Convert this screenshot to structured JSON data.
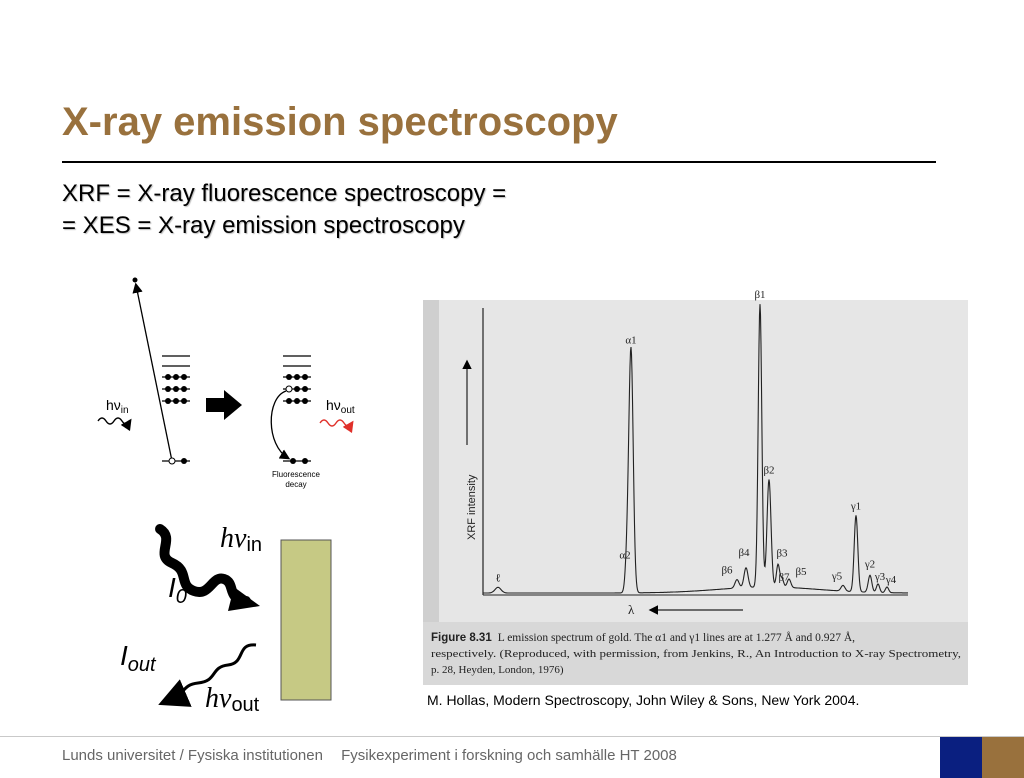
{
  "slide": {
    "title": "X-ray emission spectroscopy",
    "subtitle_line1": "XRF = X-ray fluorescence spectroscopy =",
    "subtitle_line2": "= XES = X-ray emission spectroscopy"
  },
  "level_diagram": {
    "h": "h",
    "nu": "ν",
    "in_sub": "in",
    "out_sub": "out",
    "fluorescence_label_line1": "Fluorescence",
    "fluorescence_label_line2": "decay"
  },
  "sample_figure": {
    "i0_main": "I",
    "i0_sub": "0",
    "iout_main": "I",
    "iout_sub": "out",
    "sample_color": "#c6c984"
  },
  "spectrum": {
    "ylabel": "XRF intensity",
    "xlabel": "λ",
    "caption_figure": "Figure 8.31",
    "caption_line1": "L emission spectrum of gold. The α1 and γ1 lines are at 1.277 Å and 0.927 Å,",
    "caption_line2": "respectively. (Reproduced, with permission, from Jenkins, R., An Introduction to X-ray Spectrometry,",
    "caption_line3": "p. 28, Heyden, London, 1976)"
  },
  "chart_data": {
    "type": "line",
    "xlabel": "λ",
    "ylabel": "XRF intensity",
    "x_direction": "λ increases to the left",
    "peaks": [
      {
        "label": "ℓ",
        "relative_intensity": 0.02
      },
      {
        "label": "α2",
        "relative_intensity": 0.1
      },
      {
        "label": "α1",
        "relative_intensity": 0.86
      },
      {
        "label": "β6",
        "relative_intensity": 0.03
      },
      {
        "label": "β4",
        "relative_intensity": 0.07
      },
      {
        "label": "β1",
        "relative_intensity": 1.0
      },
      {
        "label": "β2",
        "relative_intensity": 0.38
      },
      {
        "label": "β3",
        "relative_intensity": 0.08
      },
      {
        "label": "β7",
        "relative_intensity": 0.03
      },
      {
        "label": "β5",
        "relative_intensity": 0.03
      },
      {
        "label": "γ5",
        "relative_intensity": 0.02
      },
      {
        "label": "γ1",
        "relative_intensity": 0.27
      },
      {
        "label": "γ2",
        "relative_intensity": 0.06
      },
      {
        "label": "γ3",
        "relative_intensity": 0.03
      },
      {
        "label": "γ4",
        "relative_intensity": 0.02
      }
    ]
  },
  "citation": "M. Hollas, Modern Spectroscopy, John Wiley & Sons, New York 2004.",
  "footer": {
    "institution": "Lunds universitet / Fysiska institutionen",
    "course": "Fysikexperiment i forskning och samhälle HT 2008"
  },
  "colors": {
    "title": "#99713d",
    "footer_blue": "#0a1f80",
    "footer_brown": "#99713d",
    "out_photon": "#e0302a"
  }
}
